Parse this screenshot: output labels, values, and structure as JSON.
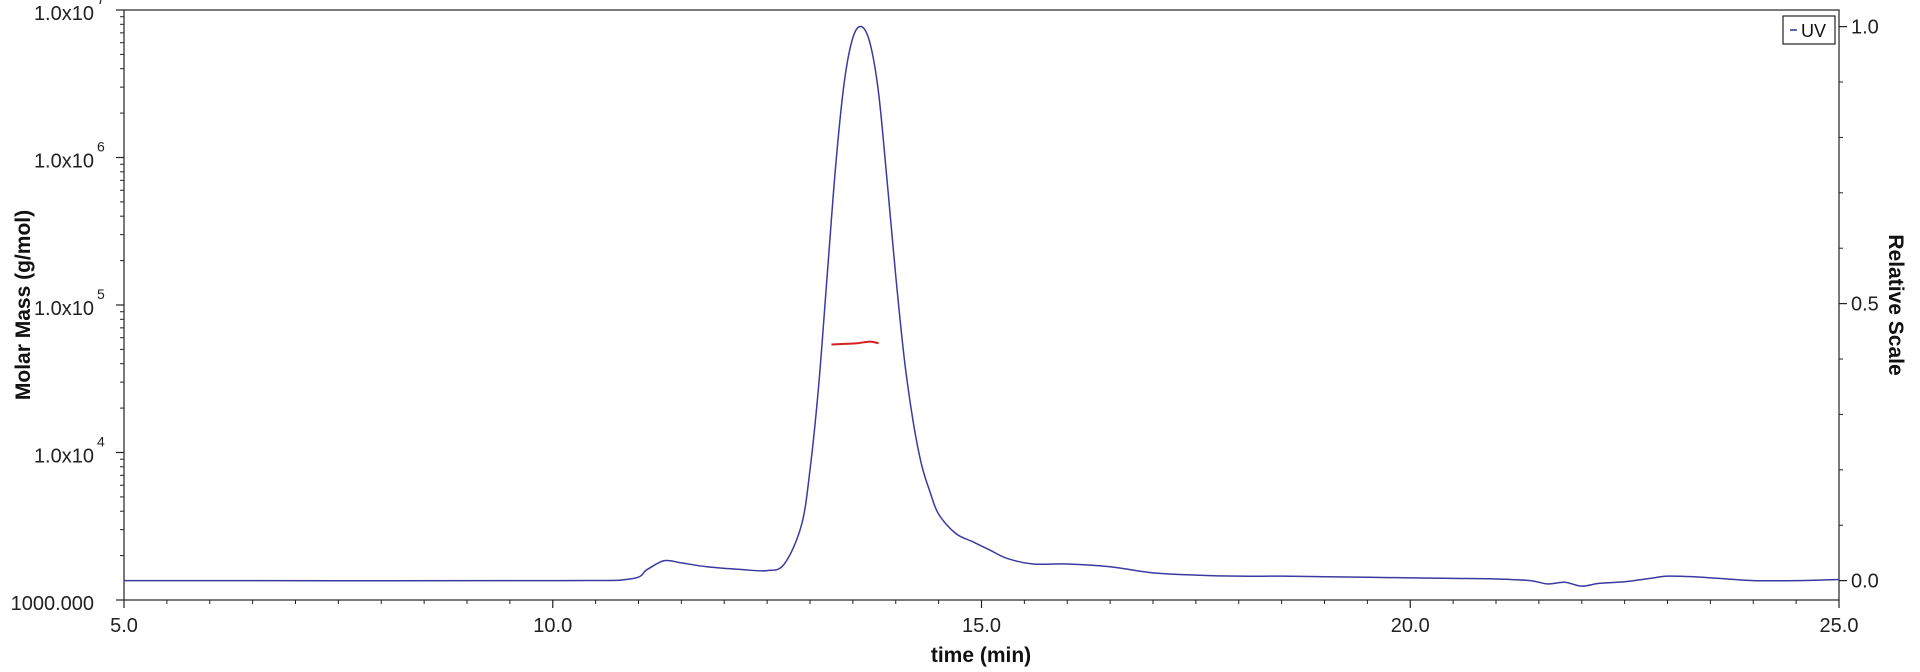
{
  "chart_data": {
    "type": "line",
    "xlabel": "time (min)",
    "ylabel_left": "Molar Mass (g/mol)",
    "ylabel_right": "Relative Scale",
    "xlim": [
      5.0,
      25.0
    ],
    "x_ticks": [
      {
        "value": 5.0,
        "label": "5.0"
      },
      {
        "value": 10.0,
        "label": "10.0"
      },
      {
        "value": 15.0,
        "label": "15.0"
      },
      {
        "value": 20.0,
        "label": "20.0"
      },
      {
        "value": 25.0,
        "label": "25.0"
      }
    ],
    "left_axis": {
      "scale": "log",
      "ylim": [
        1000,
        10000000
      ],
      "ticks": [
        {
          "value": 1000,
          "label": "1000.000",
          "sup": ""
        },
        {
          "value": 10000,
          "label": "1.0x10",
          "sup": "4"
        },
        {
          "value": 100000,
          "label": "1.0x10",
          "sup": "5"
        },
        {
          "value": 1000000,
          "label": "1.0x10",
          "sup": "6"
        },
        {
          "value": 10000000,
          "label": "1.0x10",
          "sup": "7"
        }
      ]
    },
    "right_axis": {
      "scale": "linear",
      "ylim": [
        -0.035,
        1.03
      ],
      "ticks": [
        {
          "value": 0.0,
          "label": "0.0"
        },
        {
          "value": 0.5,
          "label": "0.5"
        },
        {
          "value": 1.0,
          "label": "1.0"
        }
      ]
    },
    "grid": false,
    "legend": {
      "position": "top-right",
      "entries": [
        "UV"
      ]
    },
    "series": [
      {
        "name": "UV",
        "axis": "right",
        "color": "#3a3aa0",
        "x": [
          5.0,
          10.0,
          10.9,
          11.1,
          11.3,
          11.5,
          11.8,
          12.2,
          12.5,
          12.7,
          12.9,
          13.0,
          13.1,
          13.2,
          13.3,
          13.4,
          13.5,
          13.6,
          13.7,
          13.8,
          13.9,
          14.0,
          14.1,
          14.2,
          14.3,
          14.4,
          14.5,
          14.7,
          14.9,
          15.1,
          15.3,
          15.6,
          16.0,
          16.5,
          17.0,
          17.5,
          18.0,
          18.5,
          19.0,
          19.5,
          20.0,
          20.5,
          21.0,
          21.4,
          21.6,
          21.8,
          22.0,
          22.2,
          22.5,
          22.8,
          23.0,
          23.3,
          23.6,
          24.0,
          24.5,
          25.0
        ],
        "y": [
          0.0,
          0.0,
          0.003,
          0.02,
          0.036,
          0.032,
          0.025,
          0.02,
          0.018,
          0.03,
          0.1,
          0.2,
          0.35,
          0.55,
          0.75,
          0.9,
          0.98,
          1.0,
          0.97,
          0.88,
          0.72,
          0.55,
          0.4,
          0.29,
          0.21,
          0.16,
          0.12,
          0.085,
          0.07,
          0.055,
          0.04,
          0.03,
          0.03,
          0.025,
          0.014,
          0.01,
          0.008,
          0.008,
          0.007,
          0.006,
          0.005,
          0.004,
          0.003,
          0.0,
          -0.006,
          -0.003,
          -0.01,
          -0.005,
          -0.002,
          0.004,
          0.008,
          0.007,
          0.004,
          0.0,
          0.0,
          0.002
        ]
      },
      {
        "name": "molar-mass",
        "axis": "left",
        "color": "#d42020",
        "x": [
          13.25,
          13.4,
          13.55,
          13.7,
          13.8
        ],
        "y": [
          54000,
          54500,
          55000,
          56500,
          55000
        ]
      }
    ]
  }
}
